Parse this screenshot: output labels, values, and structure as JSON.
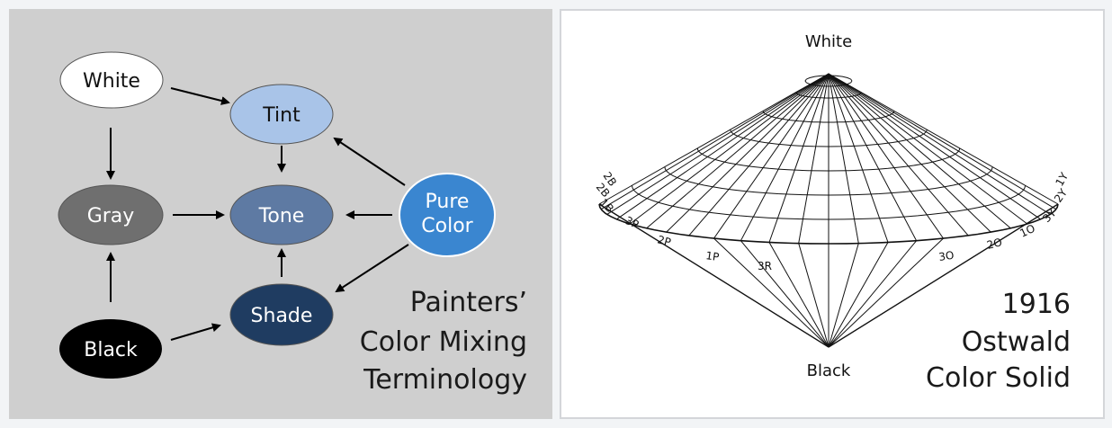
{
  "left_panel": {
    "nodes": {
      "white": {
        "label": "White",
        "fill": "#ffffff",
        "text_color": "#111111"
      },
      "tint": {
        "label": "Tint",
        "fill": "#a9c4e8",
        "text_color": "#111111"
      },
      "gray": {
        "label": "Gray",
        "fill": "#6f6f6f",
        "text_color": "#ffffff"
      },
      "tone": {
        "label": "Tone",
        "fill": "#5e7aa3",
        "text_color": "#ffffff"
      },
      "pure_color": {
        "label_line1": "Pure",
        "label_line2": "Color",
        "fill": "#3a86d0",
        "text_color": "#ffffff"
      },
      "black": {
        "label": "Black",
        "fill": "#000000",
        "text_color": "#ffffff"
      },
      "shade": {
        "label": "Shade",
        "fill": "#1f3c61",
        "text_color": "#ffffff"
      }
    },
    "caption": {
      "line1": "Painters’",
      "line2": "Color Mixing",
      "line3": "Terminology"
    }
  },
  "right_panel": {
    "top_label": "White",
    "bottom_label": "Black",
    "rim_labels": [
      "2B",
      "2B",
      "1B",
      "3P",
      "2P",
      "1P",
      "3R",
      "3O",
      "2O",
      "1O",
      "3Y",
      "2Y",
      "1Y"
    ],
    "caption": {
      "line1": "1916",
      "line2": "Ostwald",
      "line3": "Color Solid"
    }
  }
}
